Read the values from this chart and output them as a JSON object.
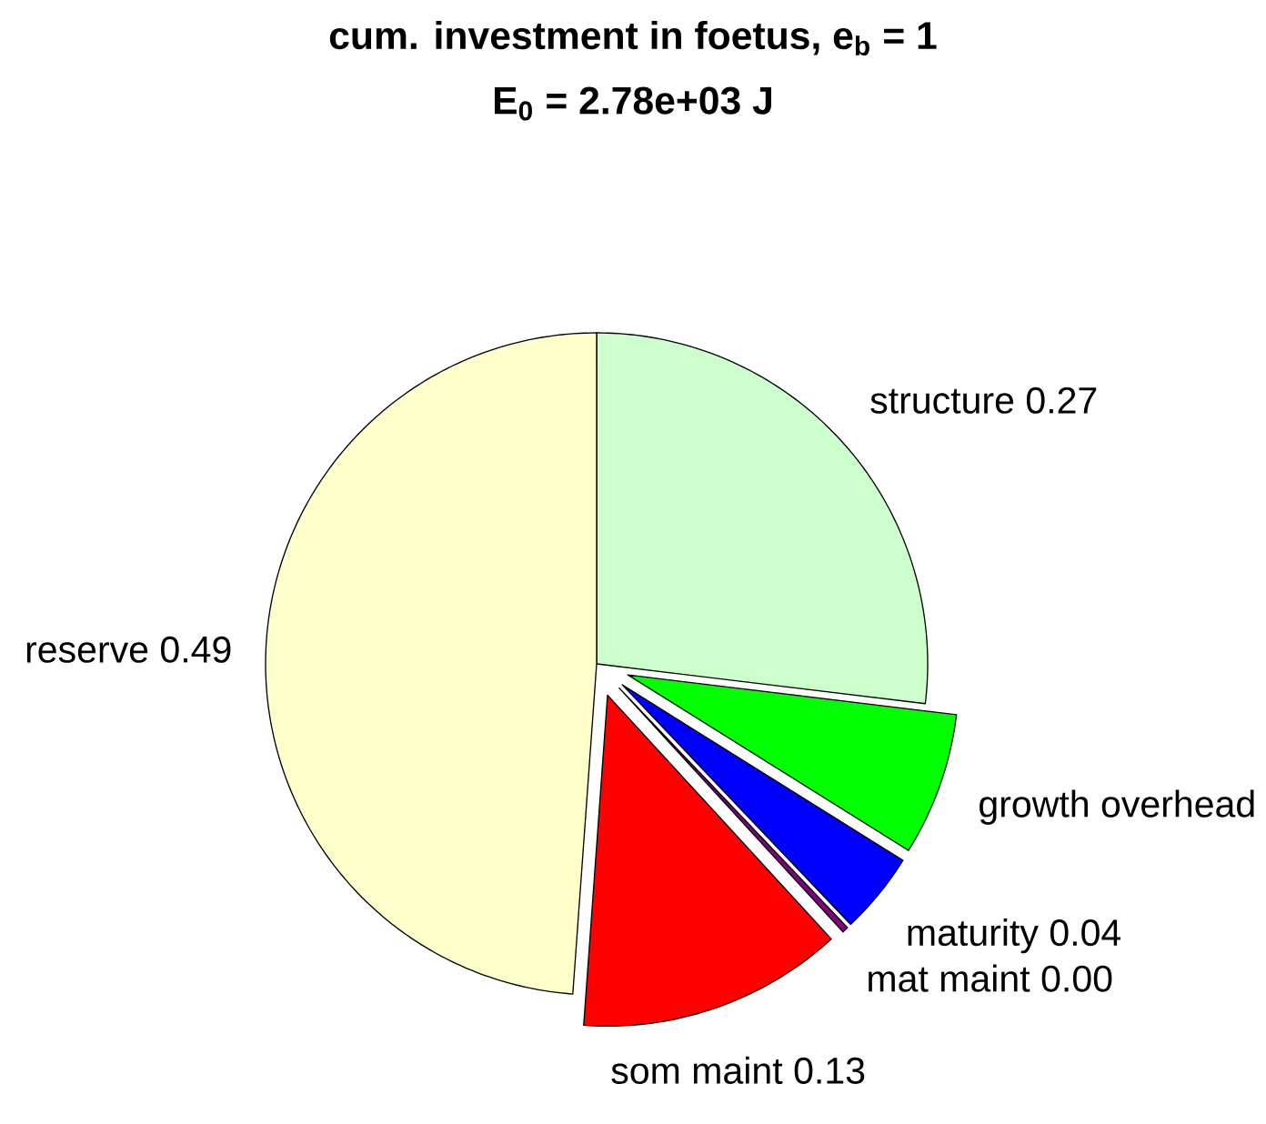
{
  "chart_data": {
    "type": "pie",
    "title": "cum. investment in foetus, e$_{b}$ = 1",
    "subtitle": "E$_{0}$ = 2.78e+03 J",
    "categories": [
      "structure",
      "growth overhead",
      "maturity",
      "mat maint",
      "som maint",
      "reserve"
    ],
    "values": [
      0.27,
      0.07,
      0.04,
      0.003,
      0.13,
      0.49
    ],
    "value_labels": [
      "0.27",
      null,
      "0.04",
      "0.00",
      "0.13",
      "0.49"
    ],
    "colors": [
      "#ccffcc",
      "#00ff00",
      "#0000ff",
      "#800080",
      "#ff0000",
      "#ffffcc"
    ]
  }
}
